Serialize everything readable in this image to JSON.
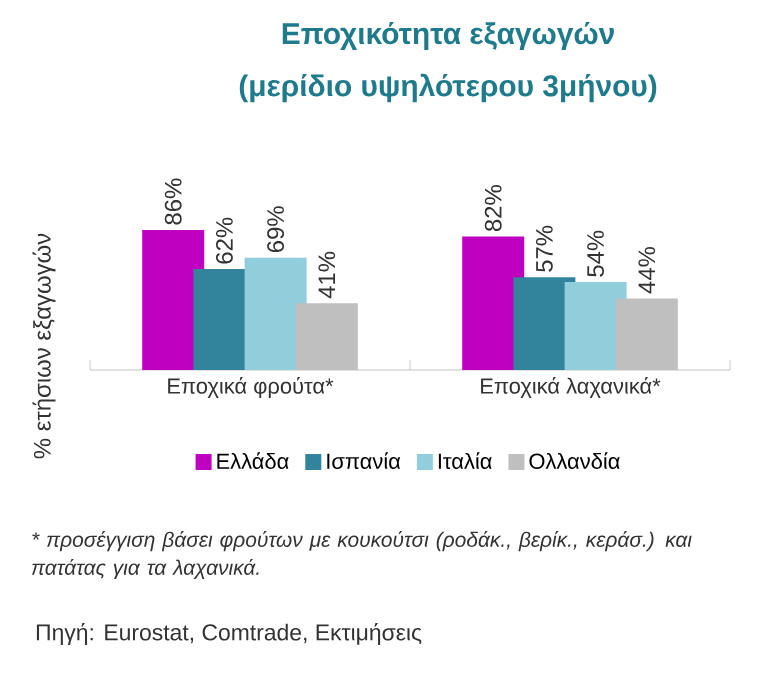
{
  "chart_data": {
    "type": "bar",
    "title": "Εποχικότητα εξαγωγών",
    "subtitle": "(μερίδιο υψηλότερου 3μήνου)",
    "ylabel": "% ετήσιων εξαγωγών",
    "categories": [
      "Εποχικά φρούτα*",
      "Εποχικά λαχανικά*"
    ],
    "series": [
      {
        "name": "Ελλάδα",
        "color": "#c000c0",
        "values": [
          86,
          82
        ],
        "value_labels": [
          "86%",
          "82%"
        ]
      },
      {
        "name": "Ισπανία",
        "color": "#31849b",
        "values": [
          62,
          57
        ],
        "value_labels": [
          "62%",
          "57%"
        ]
      },
      {
        "name": "Ιταλία",
        "color": "#92cddc",
        "values": [
          69,
          54
        ],
        "value_labels": [
          "69%",
          "54%"
        ]
      },
      {
        "name": "Ολλανδία",
        "color": "#bfbfbf",
        "values": [
          41,
          44
        ],
        "value_labels": [
          "41%",
          "44%"
        ]
      }
    ],
    "legend": "bottom",
    "annotations": [
      "* προσέγγιση βάσει φρούτων με κουκούτσι (ροδάκ., βερίκ., κεράσ.) και πατάτας για τα λαχανικά.",
      "Πηγή: Eurostat, Comtrade, Εκτιμήσεις"
    ]
  }
}
